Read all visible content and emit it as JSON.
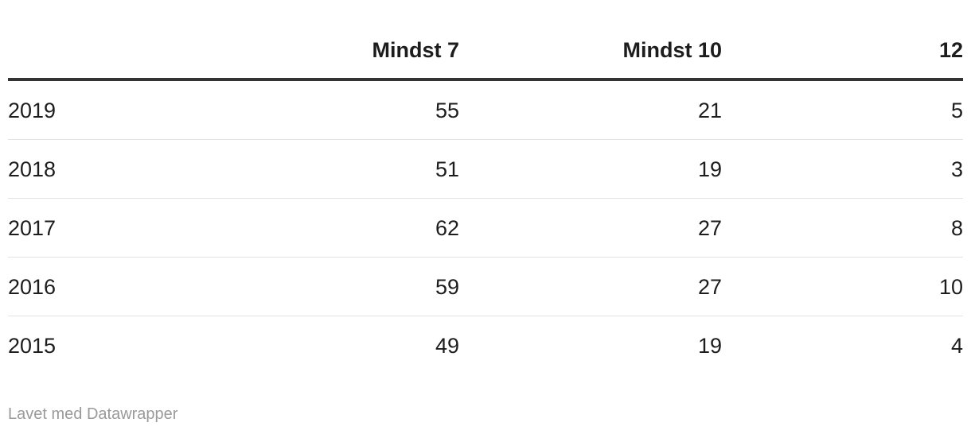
{
  "table": {
    "columns": [
      "Mindst 7",
      "Mindst 10",
      "12"
    ],
    "rows": [
      {
        "label": "2019",
        "cells": [
          55,
          21,
          5
        ]
      },
      {
        "label": "2018",
        "cells": [
          51,
          19,
          3
        ]
      },
      {
        "label": "2017",
        "cells": [
          62,
          27,
          8
        ]
      },
      {
        "label": "2016",
        "cells": [
          59,
          27,
          10
        ]
      },
      {
        "label": "2015",
        "cells": [
          49,
          19,
          4
        ]
      }
    ]
  },
  "footer": {
    "credit": "Lavet med Datawrapper"
  }
}
